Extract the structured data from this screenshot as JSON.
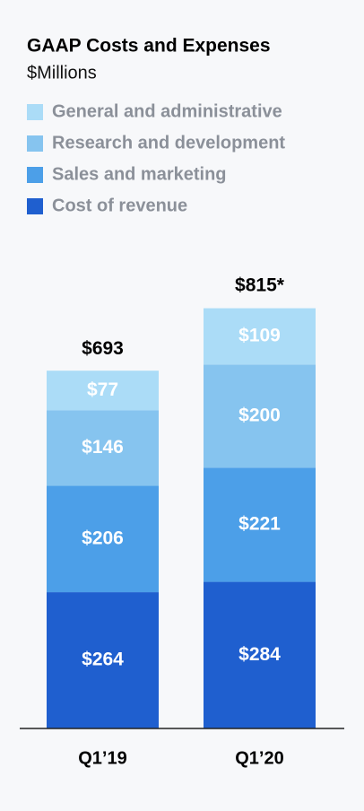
{
  "chart_data": {
    "type": "stacked_bar",
    "title": "GAAP Costs and Expenses",
    "subtitle": "$Millions",
    "categories": [
      "Q1’19",
      "Q1’20"
    ],
    "series": [
      {
        "name": "Cost of revenue",
        "color": "#1f5fcf",
        "values": [
          264,
          284
        ],
        "value_labels": [
          "$264",
          "$284"
        ]
      },
      {
        "name": "Sales and marketing",
        "color": "#4c9fe8",
        "values": [
          206,
          221
        ],
        "value_labels": [
          "$206",
          "$221"
        ]
      },
      {
        "name": "Research and development",
        "color": "#86c4ef",
        "values": [
          146,
          200
        ],
        "value_labels": [
          "$146",
          "$200"
        ]
      },
      {
        "name": "General and administrative",
        "color": "#abdcf7",
        "values": [
          77,
          109
        ],
        "value_labels": [
          "$77",
          "$109"
        ]
      }
    ],
    "totals": [
      693,
      815
    ],
    "total_labels": [
      "$693",
      "$815*"
    ]
  }
}
